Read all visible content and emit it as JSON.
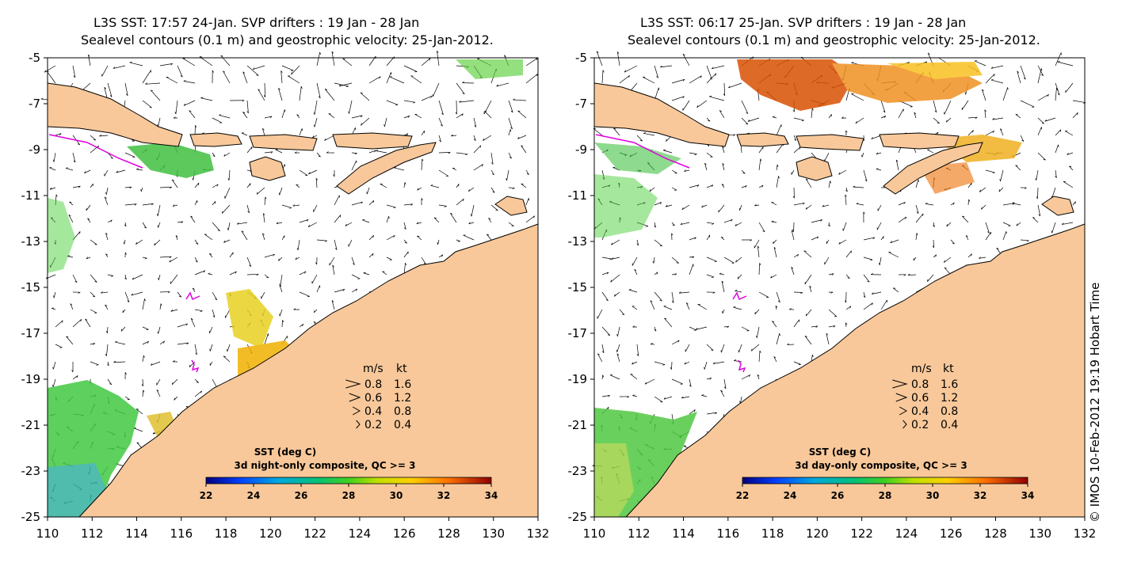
{
  "colors": {
    "land": "#f8c89a",
    "ocean": "#ffffff",
    "arrow": "#000000",
    "drifter": "#e000e0",
    "colorbar": [
      "#00007f",
      "#0040ff",
      "#00b0d0",
      "#00c080",
      "#40d020",
      "#c0e000",
      "#ffd000",
      "#ff8000",
      "#e03000",
      "#8f0000"
    ]
  },
  "panels": [
    {
      "title_line1": "L3S SST: 17:57 24-Jan. SVP drifters : 19 Jan - 28 Jan",
      "title_line2": "Sealevel contours (0.1 m) and geostrophic velocity: 25-Jan-2012.",
      "colorbar_title": "SST (deg C)",
      "colorbar_subtitle": "3d night-only composite, QC >= 3",
      "colorbar_ticks": [
        "22",
        "24",
        "26",
        "28",
        "30",
        "32",
        "34"
      ],
      "legend_header_ms": "m/s",
      "legend_header_kt": "kt",
      "legend_rows": [
        {
          "ms": "0.8",
          "kt": "1.6",
          "speed": 0.8
        },
        {
          "ms": "0.6",
          "kt": "1.2",
          "speed": 0.6
        },
        {
          "ms": "0.4",
          "kt": "0.8",
          "speed": 0.4
        },
        {
          "ms": "0.2",
          "kt": "0.4",
          "speed": 0.2
        }
      ],
      "x_ticks": [
        "110",
        "112",
        "114",
        "116",
        "118",
        "120",
        "122",
        "124",
        "126",
        "128",
        "130",
        "132"
      ],
      "y_ticks": [
        "-5",
        "-7",
        "-9",
        "-11",
        "-13",
        "-15",
        "-17",
        "-19",
        "-21",
        "-23",
        "-25"
      ]
    },
    {
      "title_line1": "L3S SST: 06:17 25-Jan. SVP drifters : 19 Jan - 28 Jan",
      "title_line2": "Sealevel contours (0.1 m) and geostrophic velocity: 25-Jan-2012.",
      "colorbar_title": "SST (deg C)",
      "colorbar_subtitle": "3d day-only composite, QC >= 3",
      "colorbar_ticks": [
        "22",
        "24",
        "26",
        "28",
        "30",
        "32",
        "34"
      ],
      "legend_header_ms": "m/s",
      "legend_header_kt": "kt",
      "legend_rows": [
        {
          "ms": "0.8",
          "kt": "1.6",
          "speed": 0.8
        },
        {
          "ms": "0.6",
          "kt": "1.2",
          "speed": 0.6
        },
        {
          "ms": "0.4",
          "kt": "0.8",
          "speed": 0.4
        },
        {
          "ms": "0.2",
          "kt": "0.4",
          "speed": 0.2
        }
      ],
      "x_ticks": [
        "110",
        "112",
        "114",
        "116",
        "118",
        "120",
        "122",
        "124",
        "126",
        "128",
        "130",
        "132"
      ],
      "y_ticks": [
        "-5",
        "-7",
        "-9",
        "-11",
        "-13",
        "-15",
        "-17",
        "-19",
        "-21",
        "-23",
        "-25"
      ]
    }
  ],
  "credit": "© IMOS 10-Feb-2012 19:19 Hobart Time"
}
